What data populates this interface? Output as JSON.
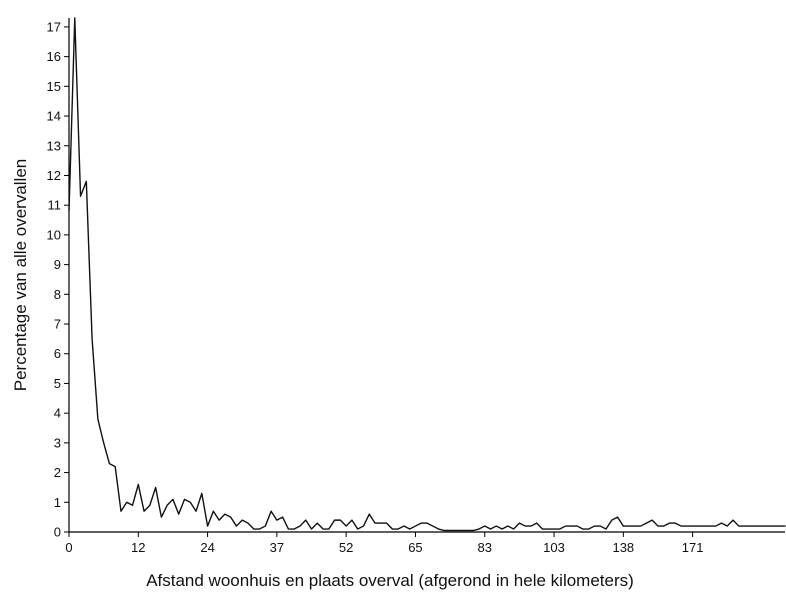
{
  "chart_data": {
    "type": "line",
    "title": "",
    "xlabel": "Afstand woonhuis en plaats overval (afgerond in hele kilometers)",
    "ylabel": "Percentage van alle overvallen",
    "x_tick_labels": [
      "0",
      "12",
      "24",
      "37",
      "52",
      "65",
      "83",
      "103",
      "138",
      "171"
    ],
    "y_ticks": [
      0,
      1,
      2,
      3,
      4,
      5,
      6,
      7,
      8,
      9,
      10,
      11,
      12,
      13,
      14,
      15,
      16,
      17
    ],
    "ylim": [
      0,
      17.3
    ],
    "grid": false,
    "legend": "none",
    "line_color": "#111111",
    "series": [
      {
        "values": [
          10.8,
          17.3,
          11.3,
          11.8,
          6.5,
          3.8,
          3.0,
          2.3,
          2.2,
          0.7,
          1.0,
          0.9,
          1.6,
          0.7,
          0.9,
          1.5,
          0.5,
          0.9,
          1.1,
          0.6,
          1.1,
          1.0,
          0.7,
          1.3,
          0.2,
          0.7,
          0.4,
          0.6,
          0.5,
          0.2,
          0.4,
          0.3,
          0.1,
          0.1,
          0.2,
          0.7,
          0.4,
          0.5,
          0.1,
          0.1,
          0.2,
          0.4,
          0.1,
          0.3,
          0.1,
          0.1,
          0.4,
          0.4,
          0.2,
          0.4,
          0.1,
          0.2,
          0.6,
          0.3,
          0.3,
          0.3,
          0.1,
          0.1,
          0.2,
          0.1,
          0.2,
          0.3,
          0.3,
          0.2,
          0.1,
          0.05,
          0.05,
          0.05,
          0.05,
          0.05,
          0.05,
          0.1,
          0.2,
          0.1,
          0.2,
          0.1,
          0.2,
          0.1,
          0.3,
          0.2,
          0.2,
          0.3,
          0.1,
          0.1,
          0.1,
          0.1,
          0.2,
          0.2,
          0.2,
          0.1,
          0.1,
          0.2,
          0.2,
          0.1,
          0.4,
          0.5,
          0.2,
          0.2,
          0.2,
          0.2,
          0.3,
          0.4,
          0.2,
          0.2,
          0.3,
          0.3,
          0.2,
          0.2,
          0.2,
          0.2,
          0.2,
          0.2,
          0.2,
          0.3,
          0.2,
          0.4,
          0.2,
          0.2,
          0.2,
          0.2,
          0.2,
          0.2,
          0.2,
          0.2,
          0.2
        ]
      }
    ]
  }
}
